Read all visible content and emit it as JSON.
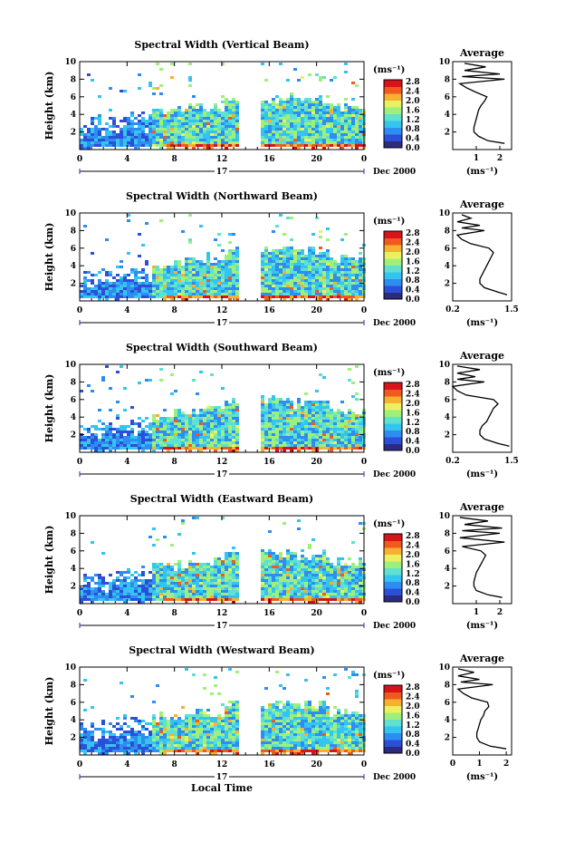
{
  "figure": {
    "xlabel_bottom": "Local Time",
    "date_label": "Dec 2000",
    "day_label": "17"
  },
  "chart_data": [
    {
      "type": "heatmap",
      "title": "Spectral Width (Vertical Beam)",
      "ylabel": "Height (km)",
      "xlim": [
        0,
        24
      ],
      "ylim": [
        0,
        10
      ],
      "x_ticks": [
        "0",
        "4",
        "8",
        "12",
        "16",
        "20",
        "0"
      ],
      "y_ticks": [
        "2",
        "4",
        "6",
        "8",
        "10"
      ],
      "colorbar_unit": "(ms⁻¹)",
      "colorbar_ticks": [
        "0.0",
        "0.4",
        "0.8",
        "1.2",
        "1.6",
        "2.0",
        "2.4",
        "2.8"
      ],
      "data_gap_hours": [
        13.3,
        15.0
      ],
      "echo_top_km": [
        3.5,
        4.0,
        4.5,
        5.0,
        6.0,
        6.0,
        5.8,
        5.0
      ],
      "average": {
        "title": "Average",
        "xlabel": "(ms⁻¹)",
        "x_ticks": [
          "1",
          "2"
        ],
        "xlim": [
          0,
          2.5
        ],
        "y_ticks": [
          "2",
          "4",
          "6",
          "8",
          "10"
        ],
        "profile_height_km": [
          0.7,
          1.0,
          1.5,
          2.0,
          2.5,
          3.0,
          3.5,
          4.0,
          4.5,
          5.0,
          5.5,
          6.0,
          6.5,
          7.0,
          7.5,
          8.0,
          8.3,
          8.6,
          9.0,
          9.4,
          9.8
        ],
        "profile_value_ms": [
          2.2,
          1.5,
          1.1,
          0.9,
          0.9,
          0.95,
          1.0,
          1.05,
          1.1,
          1.2,
          1.35,
          1.45,
          1.0,
          0.6,
          0.3,
          2.2,
          0.4,
          2.0,
          0.5,
          1.4,
          0.5
        ]
      }
    },
    {
      "type": "heatmap",
      "title": "Spectral Width (Northward Beam)",
      "ylabel": "Height (km)",
      "xlim": [
        0,
        24
      ],
      "ylim": [
        0,
        10
      ],
      "x_ticks": [
        "0",
        "4",
        "8",
        "12",
        "16",
        "20",
        "0"
      ],
      "y_ticks": [
        "2",
        "4",
        "6",
        "8",
        "10"
      ],
      "colorbar_unit": "(ms⁻¹)",
      "colorbar_ticks": [
        "0.0",
        "0.4",
        "0.8",
        "1.2",
        "1.6",
        "2.0",
        "2.4",
        "2.8"
      ],
      "data_gap_hours": [
        13.3,
        15.0
      ],
      "echo_top_km": [
        3.5,
        4.0,
        4.5,
        5.0,
        6.0,
        6.0,
        5.8,
        5.0
      ],
      "average": {
        "title": "Average",
        "xlabel": "(ms⁻¹)",
        "x_ticks": [
          "0.2",
          "1.5"
        ],
        "xlim": [
          0.2,
          1.5
        ],
        "y_ticks": [
          "2",
          "4",
          "6",
          "8",
          "10"
        ],
        "profile_height_km": [
          0.7,
          1.0,
          1.5,
          2.0,
          2.5,
          3.0,
          3.5,
          4.0,
          4.5,
          5.0,
          5.5,
          6.0,
          6.5,
          7.0,
          7.5,
          8.0,
          8.3,
          8.6,
          9.0,
          9.4,
          9.8
        ],
        "profile_value_ms": [
          1.4,
          1.2,
          0.9,
          0.8,
          0.8,
          0.85,
          0.9,
          0.95,
          1.0,
          1.05,
          1.1,
          1.0,
          0.6,
          0.4,
          0.3,
          0.9,
          0.4,
          0.8,
          0.3,
          0.6,
          0.4
        ]
      }
    },
    {
      "type": "heatmap",
      "title": "Spectral Width (Southward Beam)",
      "ylabel": "Height (km)",
      "xlim": [
        0,
        24
      ],
      "ylim": [
        0,
        10
      ],
      "x_ticks": [
        "0",
        "4",
        "8",
        "12",
        "16",
        "20",
        "0"
      ],
      "y_ticks": [
        "2",
        "4",
        "6",
        "8",
        "10"
      ],
      "colorbar_unit": "(ms⁻¹)",
      "colorbar_ticks": [
        "0.0",
        "0.4",
        "0.8",
        "1.2",
        "1.6",
        "2.0",
        "2.4",
        "2.8"
      ],
      "data_gap_hours": [
        13.3,
        15.0
      ],
      "echo_top_km": [
        3.5,
        4.0,
        4.5,
        5.0,
        6.0,
        6.0,
        5.8,
        5.0
      ],
      "average": {
        "title": "Average",
        "xlabel": "(ms⁻¹)",
        "x_ticks": [
          "0.2",
          "1.5"
        ],
        "xlim": [
          0.2,
          1.5
        ],
        "y_ticks": [
          "2",
          "4",
          "6",
          "8",
          "10"
        ],
        "profile_height_km": [
          0.7,
          1.0,
          1.5,
          2.0,
          2.5,
          3.0,
          3.5,
          4.0,
          4.5,
          5.0,
          5.5,
          6.0,
          6.5,
          7.0,
          7.5,
          8.0,
          8.3,
          8.6,
          9.0,
          9.4,
          9.8
        ],
        "profile_value_ms": [
          1.45,
          1.2,
          0.9,
          0.8,
          0.8,
          0.85,
          0.95,
          1.0,
          1.05,
          1.1,
          1.2,
          1.1,
          0.5,
          0.3,
          0.2,
          0.9,
          0.3,
          0.7,
          0.3,
          0.8,
          0.3
        ]
      }
    },
    {
      "type": "heatmap",
      "title": "Spectral Width (Eastward Beam)",
      "ylabel": "Height (km)",
      "xlim": [
        0,
        24
      ],
      "ylim": [
        0,
        10
      ],
      "x_ticks": [
        "0",
        "4",
        "8",
        "12",
        "16",
        "20",
        "0"
      ],
      "y_ticks": [
        "2",
        "4",
        "6",
        "8",
        "10"
      ],
      "colorbar_unit": "(ms⁻¹)",
      "colorbar_ticks": [
        "0.0",
        "0.4",
        "0.8",
        "1.2",
        "1.6",
        "2.0",
        "2.4",
        "2.8"
      ],
      "data_gap_hours": [
        13.3,
        15.0
      ],
      "echo_top_km": [
        3.5,
        4.0,
        4.5,
        5.0,
        6.0,
        6.0,
        5.8,
        5.0
      ],
      "average": {
        "title": "Average",
        "xlabel": "(ms⁻¹)",
        "x_ticks": [
          "1",
          "2"
        ],
        "xlim": [
          0,
          2.5
        ],
        "y_ticks": [
          "2",
          "4",
          "6",
          "8",
          "10"
        ],
        "profile_height_km": [
          0.7,
          1.0,
          1.5,
          2.0,
          2.5,
          3.0,
          3.5,
          4.0,
          4.5,
          5.0,
          5.5,
          6.0,
          6.5,
          7.0,
          7.5,
          8.0,
          8.3,
          8.6,
          9.0,
          9.4,
          9.8
        ],
        "profile_value_ms": [
          2.1,
          1.5,
          1.0,
          0.9,
          0.9,
          0.95,
          1.0,
          1.1,
          1.2,
          1.3,
          1.4,
          1.2,
          0.4,
          2.2,
          0.3,
          2.0,
          0.4,
          2.1,
          0.5,
          1.5,
          0.3
        ]
      }
    },
    {
      "type": "heatmap",
      "title": "Spectral Width (Westward Beam)",
      "ylabel": "Height (km)",
      "xlim": [
        0,
        24
      ],
      "ylim": [
        0,
        10
      ],
      "x_ticks": [
        "0",
        "4",
        "8",
        "12",
        "16",
        "20",
        "0"
      ],
      "y_ticks": [
        "2",
        "4",
        "6",
        "8",
        "10"
      ],
      "colorbar_unit": "(ms⁻¹)",
      "colorbar_ticks": [
        "0.0",
        "0.4",
        "0.8",
        "1.2",
        "1.6",
        "2.0",
        "2.4",
        "2.8"
      ],
      "data_gap_hours": [
        13.3,
        15.0
      ],
      "echo_top_km": [
        3.5,
        4.0,
        4.5,
        5.0,
        6.0,
        6.0,
        5.8,
        5.0
      ],
      "average": {
        "title": "Average",
        "xlabel": "(ms⁻¹)",
        "x_ticks": [
          "0",
          "1",
          "2"
        ],
        "xlim": [
          0,
          2.2
        ],
        "y_ticks": [
          "2",
          "4",
          "6",
          "8",
          "10"
        ],
        "profile_height_km": [
          0.7,
          1.0,
          1.5,
          2.0,
          2.5,
          3.0,
          3.5,
          4.0,
          4.5,
          5.0,
          5.5,
          6.0,
          6.5,
          7.0,
          7.5,
          8.0,
          8.3,
          8.6,
          9.0,
          9.4,
          9.8
        ],
        "profile_value_ms": [
          2.0,
          1.4,
          1.0,
          0.9,
          0.9,
          0.95,
          1.0,
          1.05,
          1.15,
          1.2,
          1.35,
          1.3,
          0.7,
          0.4,
          0.2,
          1.5,
          0.3,
          1.0,
          0.2,
          0.8,
          0.2
        ]
      }
    }
  ],
  "colors": {
    "cmap": [
      "#2b2b80",
      "#2c4fd8",
      "#2e8df0",
      "#34c4f0",
      "#5fe0d0",
      "#9ff07a",
      "#eaf060",
      "#f8b030",
      "#f05a1e",
      "#d8141a"
    ]
  }
}
